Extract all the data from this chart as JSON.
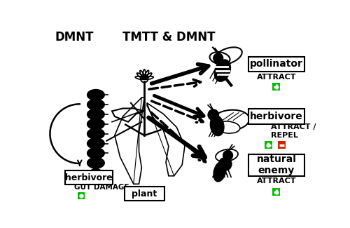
{
  "title_dmnt": "DMNT",
  "title_tmtt_dmnt": "TMTT & DMNT",
  "label_pollinator": "pollinator",
  "label_herbivore": "herbivore",
  "label_natural_enemy": "natural\nenemy",
  "label_plant": "plant",
  "label_herbivore_box": "herbivore",
  "label_gut_damage": "GUT DAMAGE",
  "label_attract1": "ATTRACT",
  "label_attract_repel": "ATTRACT /\nREPEL",
  "label_attract3": "ATTRACT",
  "bg_color": "#ffffff",
  "green_color": "#00bb00",
  "red_color": "#cc2200",
  "text_color": "#000000",
  "fig_w": 5.0,
  "fig_h": 3.25,
  "dpi": 100
}
